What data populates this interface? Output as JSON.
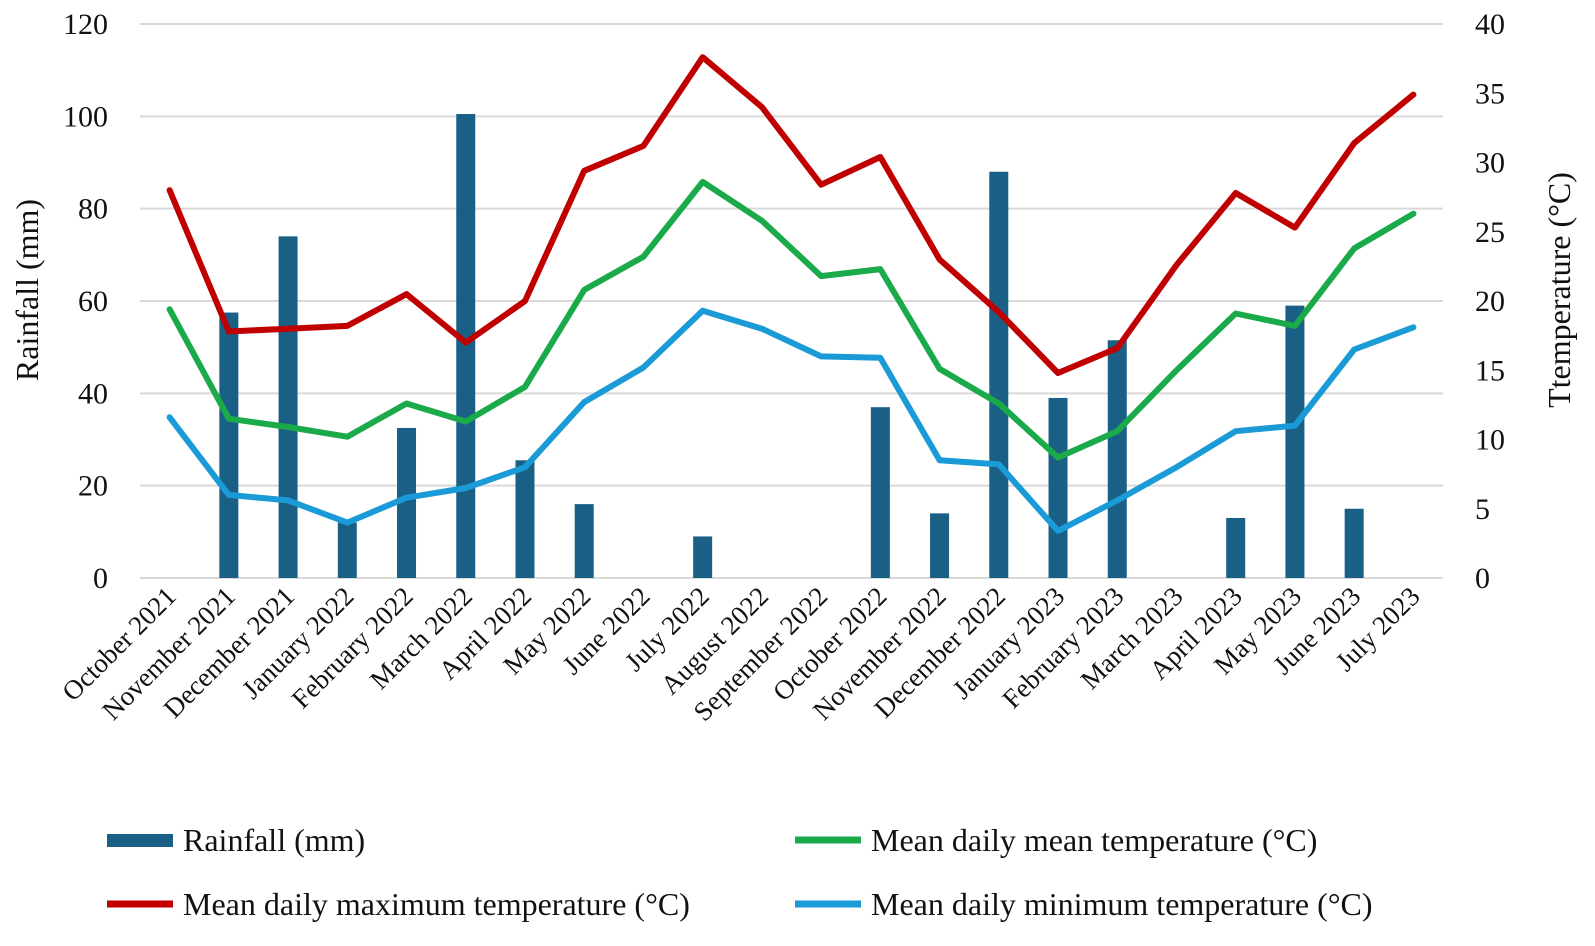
{
  "chart_data": {
    "type": "bar+line",
    "title": "",
    "categories": [
      "October 2021",
      "November 2021",
      "December 2021",
      "January 2022",
      "February 2022",
      "March 2022",
      "April 2022",
      "May 2022",
      "June 2022",
      "July 2022",
      "August 2022",
      "September 2022",
      "October 2022",
      "November 2022",
      "December 2022",
      "January 2023",
      "February 2023",
      "March 2023",
      "April 2023",
      "May 2023",
      "June 2023",
      "July 2023"
    ],
    "ylabel_left": "Rainfall (mm)",
    "ylabel_right": "Ttemperature (°C)",
    "ylim_left": [
      0,
      120
    ],
    "yticks_left": [
      0,
      20,
      40,
      60,
      80,
      100,
      120
    ],
    "ylim_right": [
      0,
      40
    ],
    "yticks_right": [
      0,
      5,
      10,
      15,
      20,
      25,
      30,
      35,
      40
    ],
    "grid": true,
    "legend_position": "bottom",
    "series": [
      {
        "name": "Rainfall (mm)",
        "kind": "bar",
        "axis": "left",
        "color": "#1a5f85",
        "values": [
          0,
          57.5,
          74,
          12,
          32.5,
          100.5,
          25.5,
          16,
          0,
          9,
          0,
          0,
          37,
          14,
          88,
          39,
          51.5,
          0,
          13,
          59,
          15,
          0
        ]
      },
      {
        "name": "Mean daily mean temperature (°C)",
        "kind": "line",
        "axis": "right",
        "color": "#1aaa4a",
        "values": [
          19.4,
          11.5,
          10.9,
          10.2,
          12.6,
          11.3,
          13.8,
          20.8,
          23.2,
          28.6,
          25.8,
          21.8,
          22.3,
          15.1,
          12.6,
          8.7,
          10.6,
          15.0,
          19.1,
          18.2,
          23.8,
          26.3
        ]
      },
      {
        "name": "Mean daily maximum temperature (°C)",
        "kind": "line",
        "axis": "right",
        "color": "#c00000",
        "values": [
          28.0,
          17.8,
          18.0,
          18.2,
          20.5,
          17.0,
          20.0,
          29.4,
          31.2,
          37.6,
          34.0,
          28.4,
          30.4,
          23.0,
          19.2,
          14.8,
          16.6,
          22.6,
          27.8,
          25.3,
          31.4,
          34.9
        ]
      },
      {
        "name": "Mean daily minimum temperature (°C)",
        "kind": "line",
        "axis": "right",
        "color": "#1a9ad6",
        "values": [
          11.6,
          6.0,
          5.6,
          4.0,
          5.8,
          6.5,
          8.0,
          12.7,
          15.2,
          19.3,
          18.0,
          16.0,
          15.9,
          8.5,
          8.2,
          3.4,
          5.6,
          8.0,
          10.6,
          11.0,
          16.5,
          18.1
        ]
      }
    ]
  }
}
